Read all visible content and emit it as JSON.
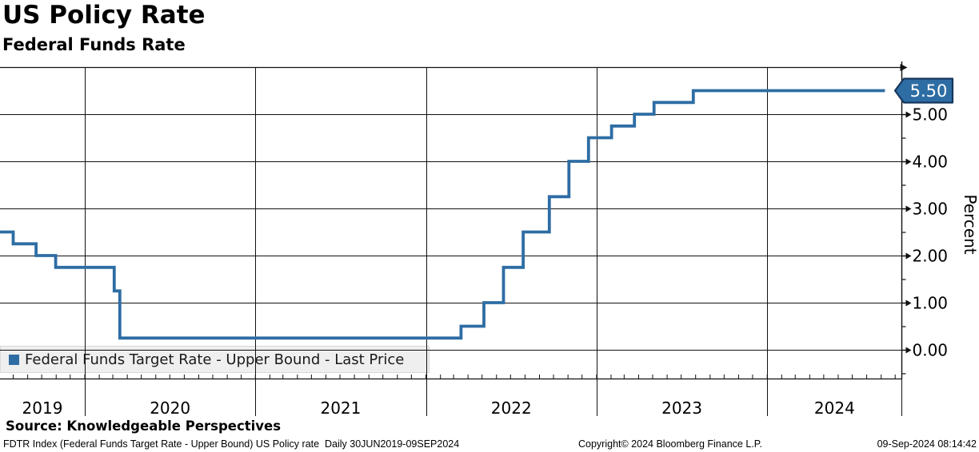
{
  "header": {
    "title": "US Policy Rate",
    "subtitle": "Federal Funds Rate"
  },
  "legend": {
    "label": "Federal Funds Target Rate - Upper Bound - Last Price",
    "marker_color": "#2e6da4"
  },
  "footer": {
    "source": "Source: Knowledgeable Perspectives",
    "left": "FDTR Index (Federal Funds Target Rate - Upper Bound) US Policy rate  Daily 30JUN2019-09SEP2024",
    "center": "Copyright© 2024 Bloomberg Finance L.P.",
    "right": "09-Sep-2024 08:14:42"
  },
  "chart_data": {
    "type": "line",
    "subtype": "step",
    "title": "US Policy Rate",
    "subtitle": "Federal Funds Rate",
    "ylabel": "Percent",
    "ylabel_side": "right",
    "ylim": [
      -0.6,
      6.0
    ],
    "y_major_ticks": [
      0,
      1,
      2,
      3,
      4,
      5
    ],
    "y_tick_labels": [
      "0.00",
      "1.00",
      "2.00",
      "3.00",
      "4.00",
      "5.00"
    ],
    "y_minor_ticks": [
      -0.5,
      0.5,
      1.5,
      2.5,
      3.5,
      4.5,
      5.5
    ],
    "x_range": [
      "2019-06-30",
      "2024-09-09"
    ],
    "x_year_labels": [
      "2019",
      "2020",
      "2021",
      "2022",
      "2023",
      "2024"
    ],
    "x_year_boundaries": [
      "2020-01-01",
      "2021-01-01",
      "2022-01-01",
      "2023-01-01",
      "2024-01-01"
    ],
    "grid": true,
    "legend_position": "bottom-left",
    "last_price": 5.5,
    "last_price_label": "5.50",
    "line_color": "#2e6da4",
    "badge_fill": "#2e6da4",
    "badge_border": "#17375e",
    "axis_color": "#111111",
    "series": [
      {
        "name": "Federal Funds Target Rate - Upper Bound - Last Price",
        "steps": [
          [
            "2019-06-30",
            2.5
          ],
          [
            "2019-08-01",
            2.25
          ],
          [
            "2019-09-19",
            2.0
          ],
          [
            "2019-10-31",
            1.75
          ],
          [
            "2020-03-04",
            1.25
          ],
          [
            "2020-03-16",
            0.25
          ],
          [
            "2022-03-17",
            0.5
          ],
          [
            "2022-05-05",
            1.0
          ],
          [
            "2022-06-16",
            1.75
          ],
          [
            "2022-07-28",
            2.5
          ],
          [
            "2022-09-22",
            3.25
          ],
          [
            "2022-11-03",
            4.0
          ],
          [
            "2022-12-15",
            4.5
          ],
          [
            "2023-02-02",
            4.75
          ],
          [
            "2023-03-23",
            5.0
          ],
          [
            "2023-05-04",
            5.25
          ],
          [
            "2023-07-27",
            5.5
          ],
          [
            "2024-09-09",
            5.5
          ]
        ]
      }
    ]
  }
}
